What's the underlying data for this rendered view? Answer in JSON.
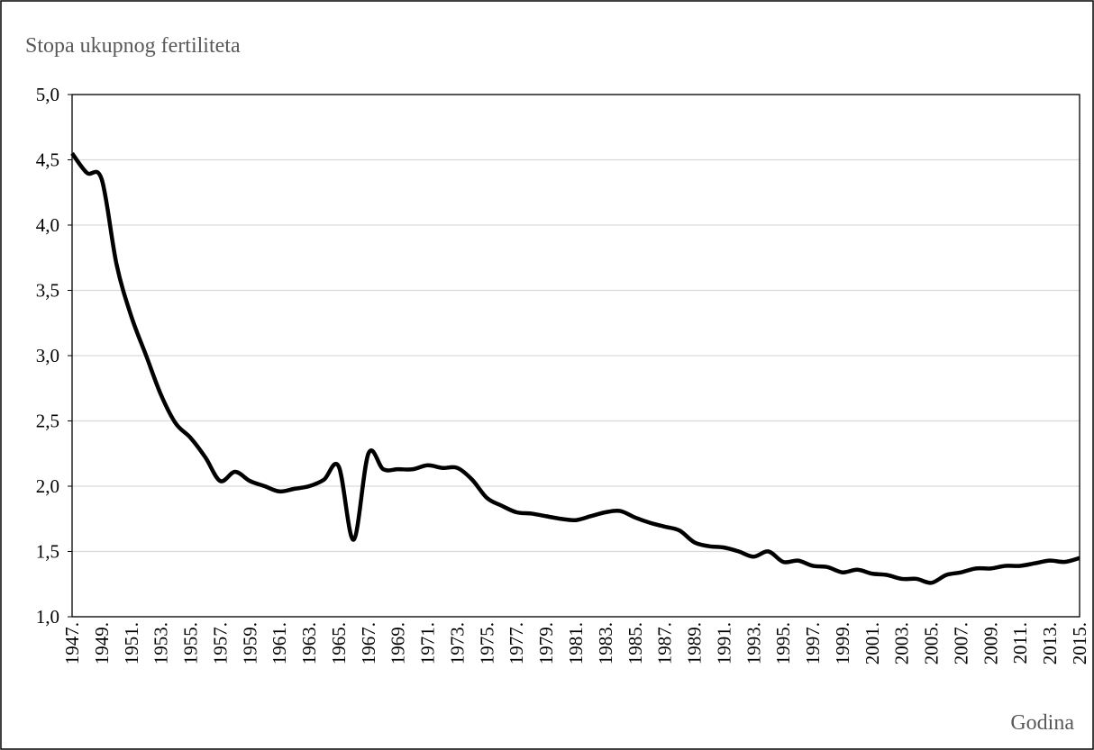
{
  "chart_data": {
    "type": "line",
    "title": "Stopa ukupnog fertiliteta",
    "x_label": "Godina",
    "categories": [
      "1947.",
      null,
      "1949.",
      null,
      "1951.",
      null,
      "1953.",
      null,
      "1955.",
      null,
      "1957.",
      null,
      "1959.",
      null,
      "1961.",
      null,
      "1963.",
      null,
      "1965.",
      null,
      "1967.",
      null,
      "1969.",
      null,
      "1971.",
      null,
      "1973.",
      null,
      "1975.",
      null,
      "1977.",
      null,
      "1979.",
      null,
      "1981.",
      null,
      "1983.",
      null,
      "1985.",
      null,
      "1987.",
      null,
      "1989.",
      null,
      "1991.",
      null,
      "1993.",
      null,
      "1995.",
      null,
      "1997.",
      null,
      "1999.",
      null,
      "2001.",
      null,
      "2003.",
      null,
      "2005.",
      null,
      "2007.",
      null,
      "2009.",
      null,
      "2011.",
      null,
      "2013.",
      null,
      "2015."
    ],
    "series": [
      {
        "name": "Stopa ukupnog fertiliteta",
        "color": "#000000",
        "values": [
          4.55,
          4.4,
          4.35,
          3.7,
          3.3,
          3.0,
          2.7,
          2.48,
          2.37,
          2.22,
          2.04,
          2.11,
          2.04,
          2.0,
          1.96,
          1.98,
          2.0,
          2.05,
          2.15,
          1.59,
          2.25,
          2.13,
          2.13,
          2.13,
          2.16,
          2.14,
          2.14,
          2.05,
          1.91,
          1.85,
          1.8,
          1.79,
          1.77,
          1.75,
          1.74,
          1.77,
          1.8,
          1.81,
          1.76,
          1.72,
          1.69,
          1.66,
          1.57,
          1.54,
          1.53,
          1.5,
          1.46,
          1.5,
          1.42,
          1.43,
          1.39,
          1.38,
          1.34,
          1.36,
          1.33,
          1.32,
          1.29,
          1.29,
          1.26,
          1.32,
          1.34,
          1.37,
          1.37,
          1.39,
          1.39,
          1.41,
          1.43,
          1.42,
          1.45
        ]
      }
    ],
    "ylim": [
      1,
      5
    ],
    "yticks": [
      {
        "value": 1,
        "label": "1,0"
      },
      {
        "value": 1.5,
        "label": "1,5"
      },
      {
        "value": 2,
        "label": "2,0"
      },
      {
        "value": 2.5,
        "label": "2,5"
      },
      {
        "value": 3,
        "label": "3,0"
      },
      {
        "value": 3.5,
        "label": "3,5"
      },
      {
        "value": 4,
        "label": "4,0"
      },
      {
        "value": 4.5,
        "label": "4,5"
      },
      {
        "value": 5,
        "label": "5,0"
      }
    ],
    "grid": true
  }
}
